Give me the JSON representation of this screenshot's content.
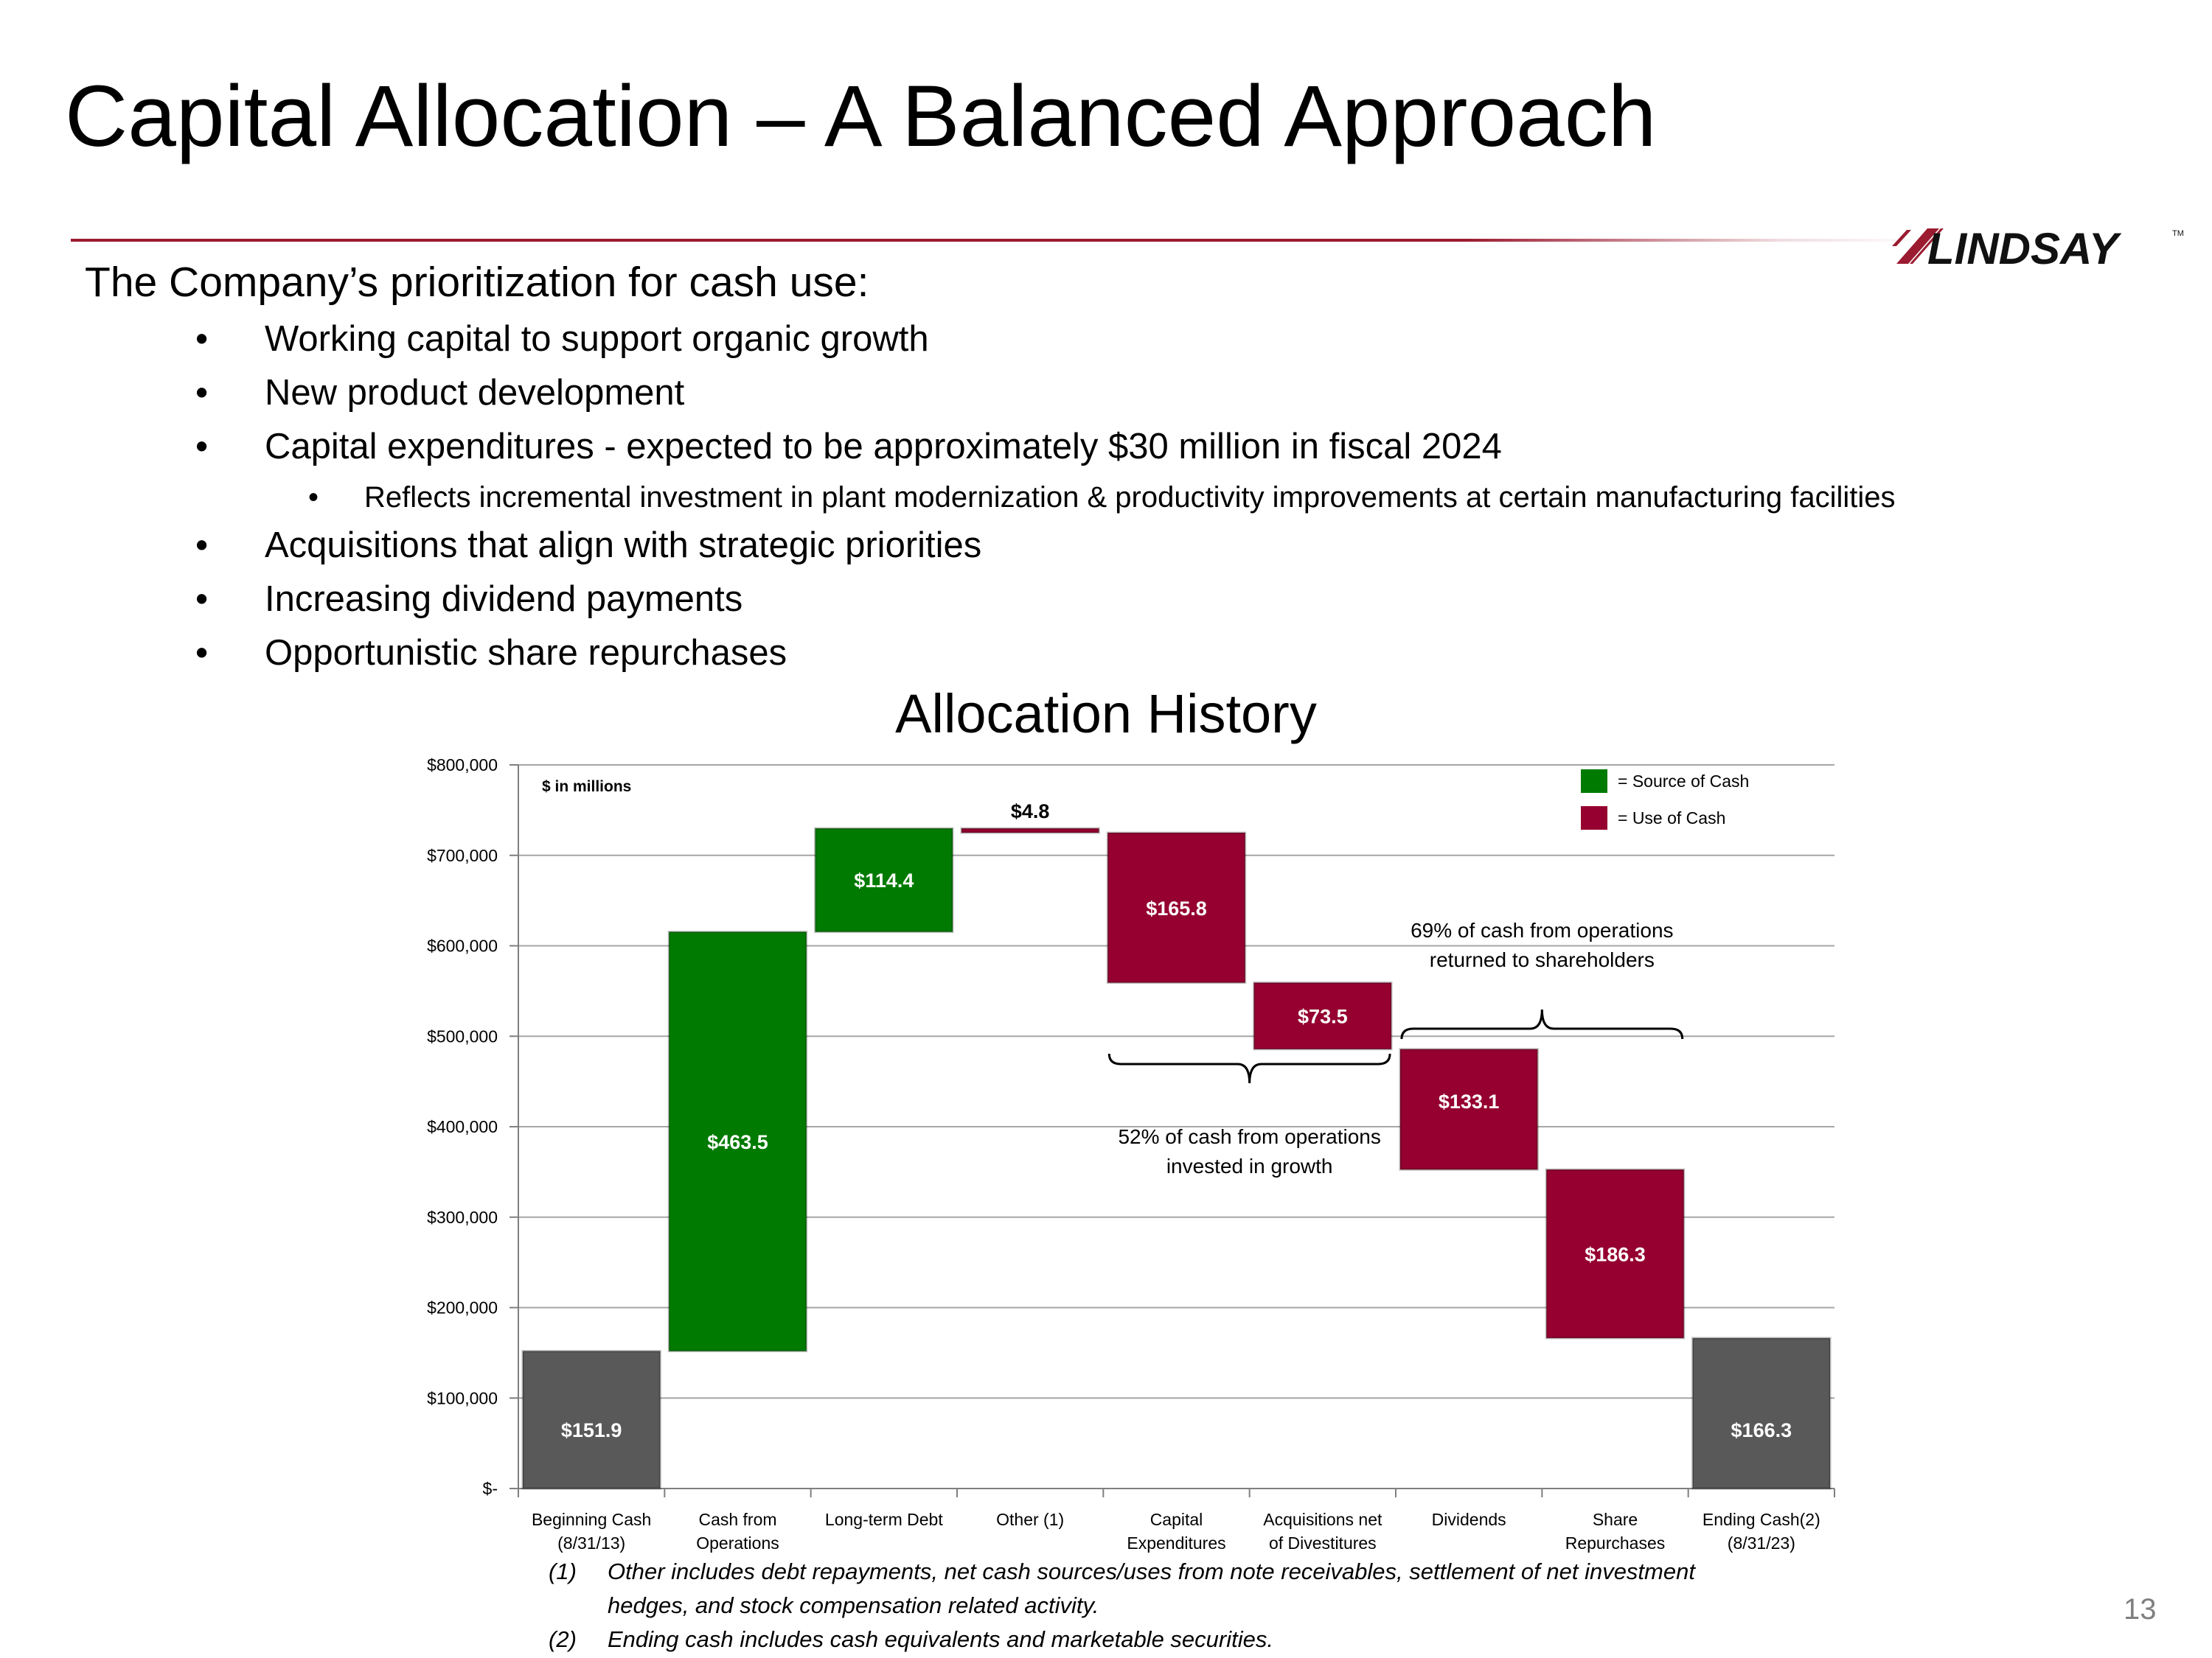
{
  "slide": {
    "title": "Capital Allocation – A Balanced Approach",
    "logo_text": "LINDSAY",
    "logo_tm": "TM",
    "intro": "The Company’s prioritization for cash use:",
    "bullets": [
      {
        "text": "Working capital to support organic growth",
        "level": 1
      },
      {
        "text": "New product development",
        "level": 1
      },
      {
        "text": "Capital expenditures - expected to be approximately $30 million in fiscal 2024",
        "level": 1
      },
      {
        "text": "Reflects incremental investment in plant modernization & productivity improvements at certain manufacturing facilities",
        "level": 2
      },
      {
        "text": "Acquisitions that align with strategic priorities",
        "level": 1
      },
      {
        "text": "Increasing dividend payments",
        "level": 1
      },
      {
        "text": "Opportunistic share repurchases",
        "level": 1
      }
    ],
    "bullet_symbol": "•",
    "footnotes": [
      {
        "num": "(1)",
        "text": "Other includes debt repayments, net cash sources/uses from note receivables, settlement of net investment hedges, and stock compensation related activity."
      },
      {
        "num": "(2)",
        "text": "Ending cash includes cash equivalents and marketable securities."
      }
    ],
    "page_number": "13"
  },
  "chart_data": {
    "type": "bar",
    "subtype": "waterfall",
    "title": "Allocation History",
    "unit_note": "$ in millions",
    "ylim": [
      0,
      800000
    ],
    "yticks": [
      0,
      100000,
      200000,
      300000,
      400000,
      500000,
      600000,
      700000,
      800000
    ],
    "ytick_labels": [
      "$-",
      "$100,000",
      "$200,000",
      "$300,000",
      "$400,000",
      "$500,000",
      "$600,000",
      "$700,000",
      "$800,000"
    ],
    "grid": true,
    "categories": [
      [
        "Beginning Cash",
        "(8/31/13)"
      ],
      [
        "Cash from",
        "Operations"
      ],
      [
        "Long-term Debt"
      ],
      [
        "Other (1)"
      ],
      [
        "Capital",
        "Expenditures"
      ],
      [
        "Acquisitions net",
        "of Divestitures"
      ],
      [
        "Dividends"
      ],
      [
        "Share",
        "Repurchases"
      ],
      [
        "Ending Cash(2)",
        "(8/31/23)"
      ]
    ],
    "bars": [
      {
        "label": "$151.9",
        "start": 0,
        "end": 151900,
        "kind": "total"
      },
      {
        "label": "$463.5",
        "start": 151900,
        "end": 615400,
        "kind": "source"
      },
      {
        "label": "$114.4",
        "start": 615400,
        "end": 729800,
        "kind": "source"
      },
      {
        "label": "$4.8",
        "start": 729800,
        "end": 725000,
        "kind": "use"
      },
      {
        "label": "$165.8",
        "start": 725000,
        "end": 559200,
        "kind": "use"
      },
      {
        "label": "$73.5",
        "start": 559200,
        "end": 485700,
        "kind": "use"
      },
      {
        "label": "$133.1",
        "start": 485700,
        "end": 352600,
        "kind": "use"
      },
      {
        "label": "$186.3",
        "start": 352600,
        "end": 166300,
        "kind": "use"
      },
      {
        "label": "$166.3",
        "start": 0,
        "end": 166300,
        "kind": "total"
      }
    ],
    "legend": {
      "placement": "top-right",
      "items": [
        {
          "label": "= Source of Cash",
          "kind": "source"
        },
        {
          "label": "= Use of Cash",
          "kind": "use"
        }
      ]
    },
    "annotations": [
      {
        "lines": [
          "69% of cash from operations",
          "returned to shareholders"
        ],
        "span": [
          6,
          7
        ],
        "side": "above"
      },
      {
        "lines": [
          "52% of cash from operations",
          "invested in growth"
        ],
        "span": [
          4,
          5
        ],
        "side": "below"
      }
    ],
    "colors": {
      "source": "#007a00",
      "use": "#950030",
      "total": "#595959",
      "grid": "#a6a6a6",
      "rule": "#9b1b30"
    }
  }
}
